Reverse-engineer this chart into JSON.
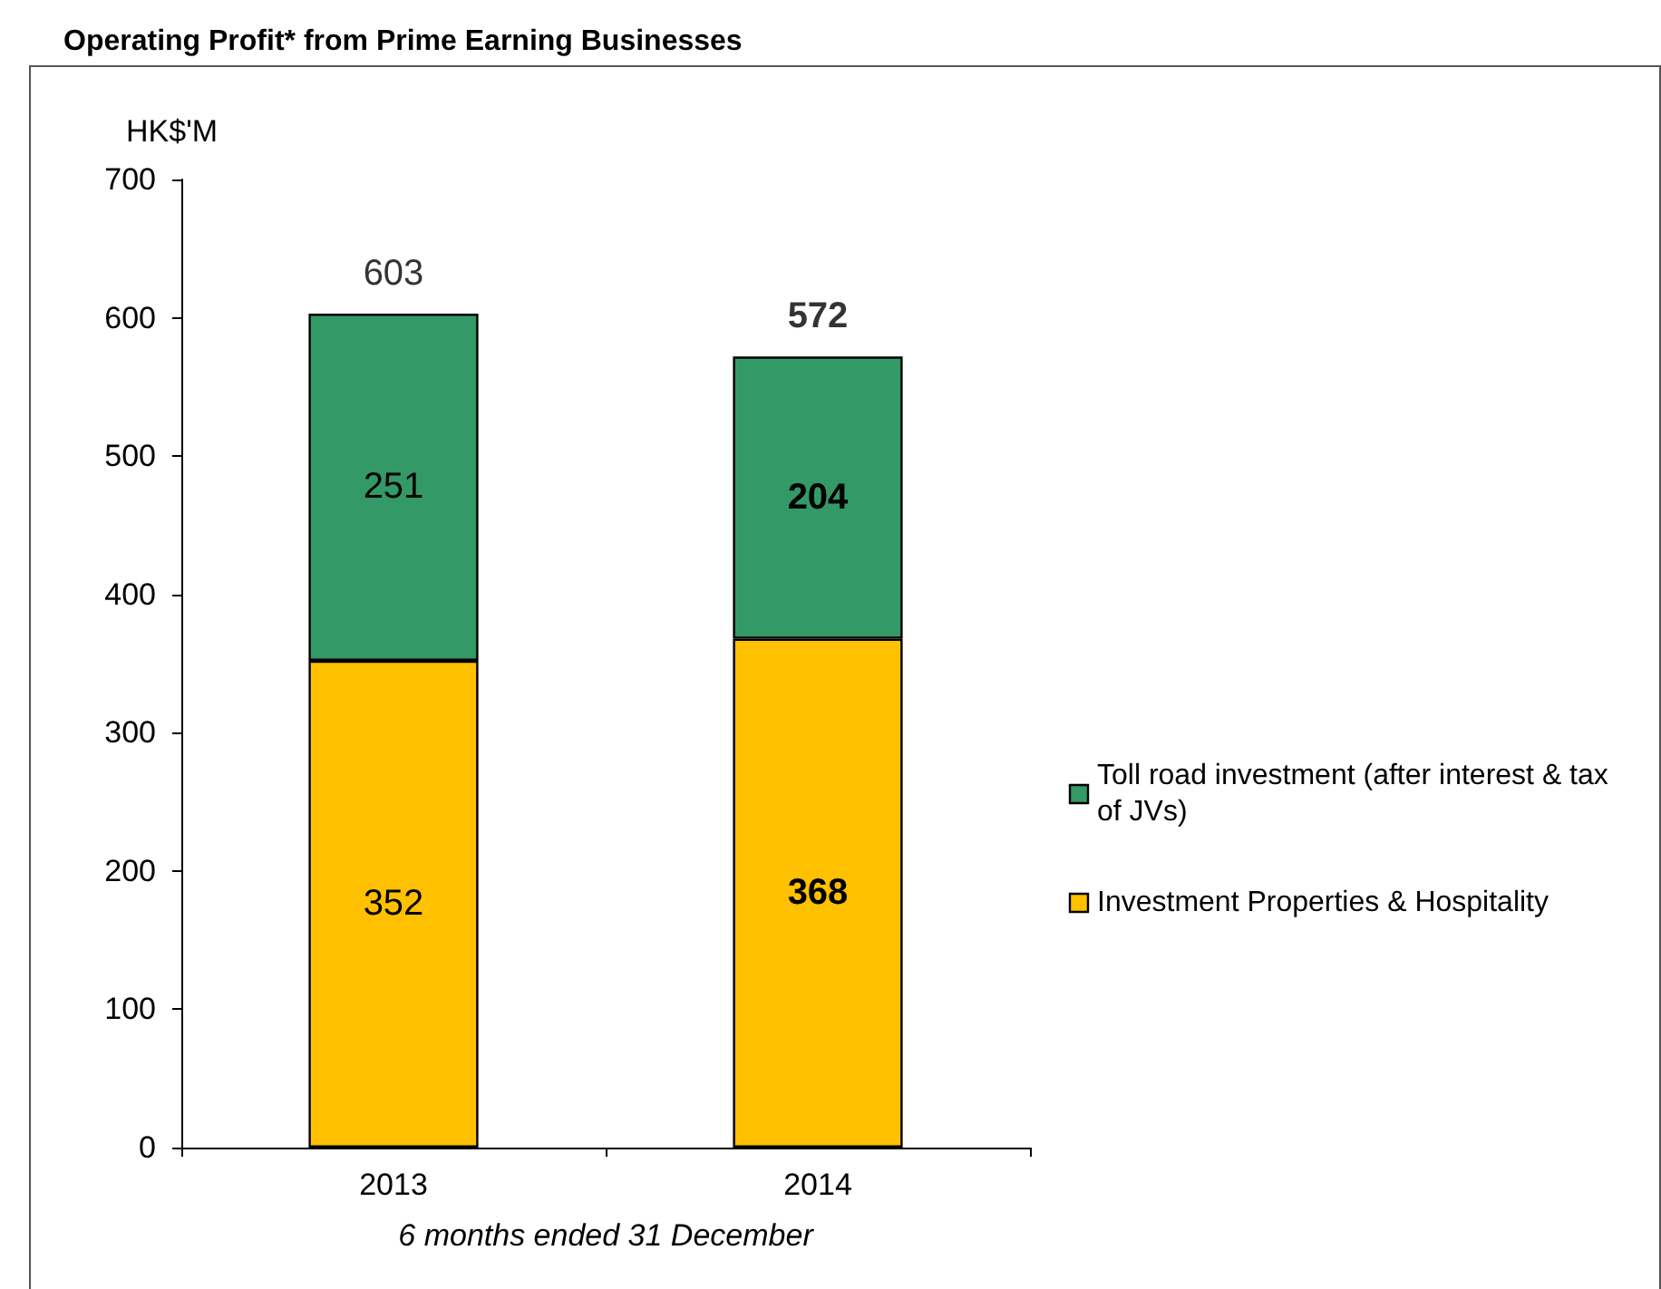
{
  "chart_data": {
    "type": "bar",
    "title": "Operating Profit* from Prime Earning Businesses",
    "ylabel": "HK$'M",
    "xlabel": "6 months ended 31 December",
    "categories": [
      "2013",
      "2014"
    ],
    "series": [
      {
        "name": "Investment Properties & Hospitality",
        "color": "#ffc000",
        "values": [
          352,
          368
        ]
      },
      {
        "name": "Toll road investment (after interest & tax of JVs)",
        "color": "#339966",
        "values": [
          251,
          204
        ]
      }
    ],
    "stacked": true,
    "data_labels": true,
    "totals": [
      "603",
      "572"
    ],
    "ylim": [
      0,
      700
    ],
    "yticks": [
      0,
      100,
      200,
      300,
      400,
      500,
      600,
      700
    ],
    "grid": false,
    "legend": "right"
  }
}
